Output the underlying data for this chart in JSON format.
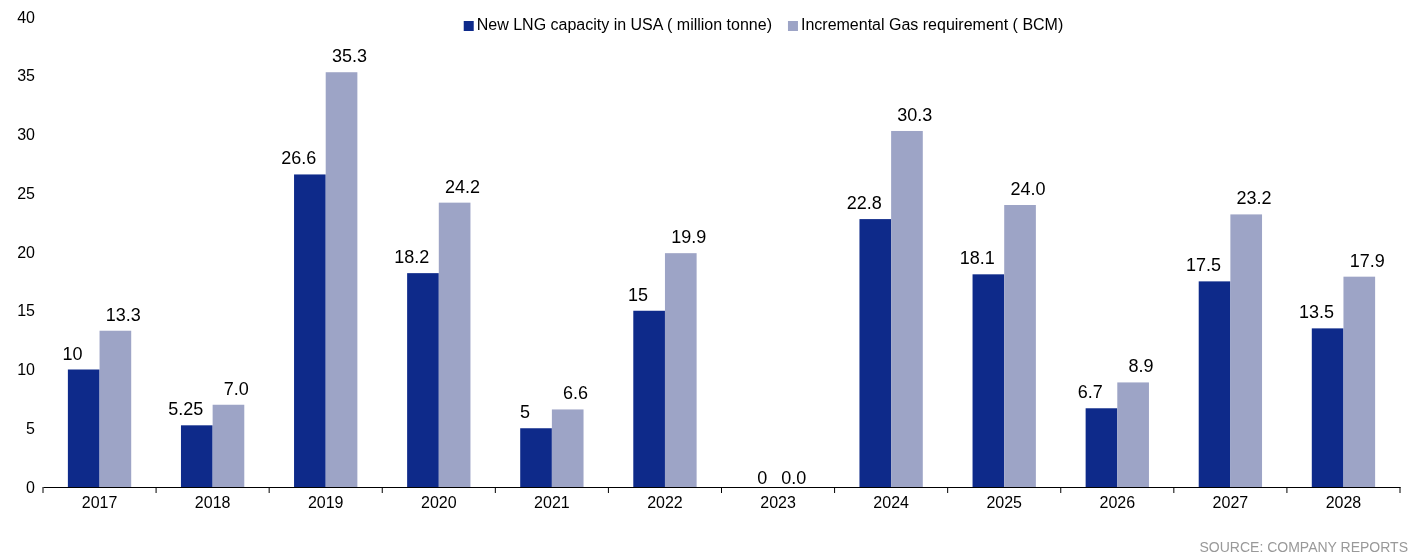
{
  "chart_data": {
    "type": "bar",
    "categories": [
      "2017",
      "2018",
      "2019",
      "2020",
      "2021",
      "2022",
      "2023",
      "2024",
      "2025",
      "2026",
      "2027",
      "2028"
    ],
    "series": [
      {
        "name": "New LNG capacity in USA ( million tonne)",
        "color": "#0e2a8a",
        "values": [
          10,
          5.25,
          26.6,
          18.2,
          5,
          15,
          0,
          22.8,
          18.1,
          6.7,
          17.5,
          13.5
        ],
        "value_labels": [
          "10",
          "5.25",
          "26.6",
          "18.2",
          "5",
          "15",
          "0",
          "22.8",
          "18.1",
          "6.7",
          "17.5",
          "13.5"
        ]
      },
      {
        "name": "Incremental Gas requirement ( BCM)",
        "color": "#9da4c6",
        "values": [
          13.3,
          7.0,
          35.3,
          24.2,
          6.6,
          19.9,
          0.0,
          30.3,
          24.0,
          8.9,
          23.2,
          17.9
        ],
        "value_labels": [
          "13.3",
          "7.0",
          "35.3",
          "24.2",
          "6.6",
          "19.9",
          "0.0",
          "30.3",
          "24.0",
          "8.9",
          "23.2",
          "17.9"
        ]
      }
    ],
    "ylim": [
      0,
      40
    ],
    "yticks": [
      0,
      5,
      10,
      15,
      20,
      25,
      30,
      35,
      40
    ],
    "grid": false,
    "legend": "top",
    "annotations": [
      "SOURCE: COMPANY REPORTS"
    ]
  }
}
